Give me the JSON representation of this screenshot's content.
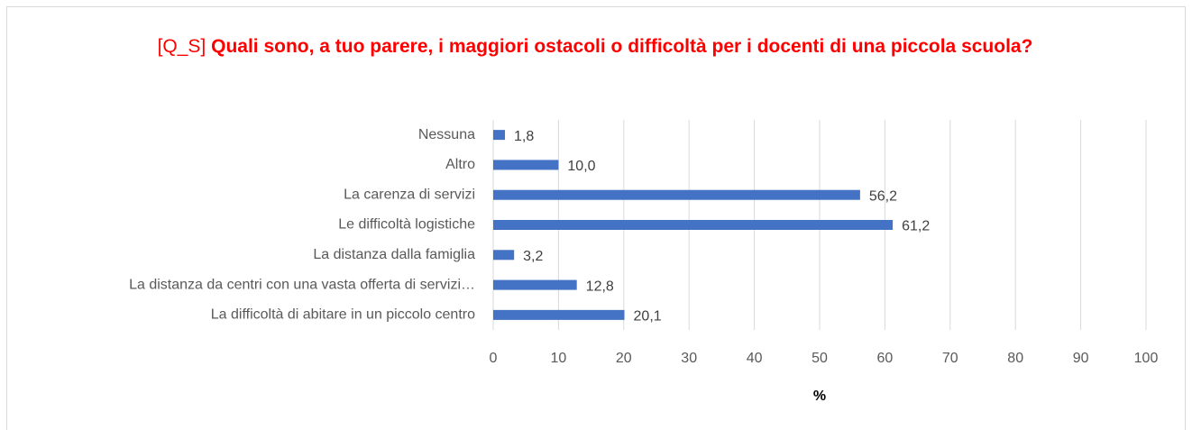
{
  "chart_data": {
    "type": "barh",
    "title_tag": "[Q_S]",
    "title": "Quali sono, a tuo parere, i maggiori ostacoli o difficoltà per i docenti di una piccola scuola?",
    "categories": [
      "Nessuna",
      "Altro",
      "La carenza di servizi",
      "Le difficoltà logistiche",
      "La distanza dalla famiglia",
      "La distanza da centri con una vasta offerta di servizi…",
      "La difficoltà di abitare in un piccolo centro"
    ],
    "values": [
      1.8,
      10.0,
      56.2,
      61.2,
      3.2,
      12.8,
      20.1
    ],
    "value_labels": [
      "1,8",
      "10,0",
      "56,2",
      "61,2",
      "3,2",
      "12,8",
      "20,1"
    ],
    "color": "#4472c4",
    "xlim": [
      0,
      100
    ],
    "xticks": [
      0,
      10,
      20,
      30,
      40,
      50,
      60,
      70,
      80,
      90,
      100
    ],
    "xlabel": "%",
    "grid": true
  }
}
